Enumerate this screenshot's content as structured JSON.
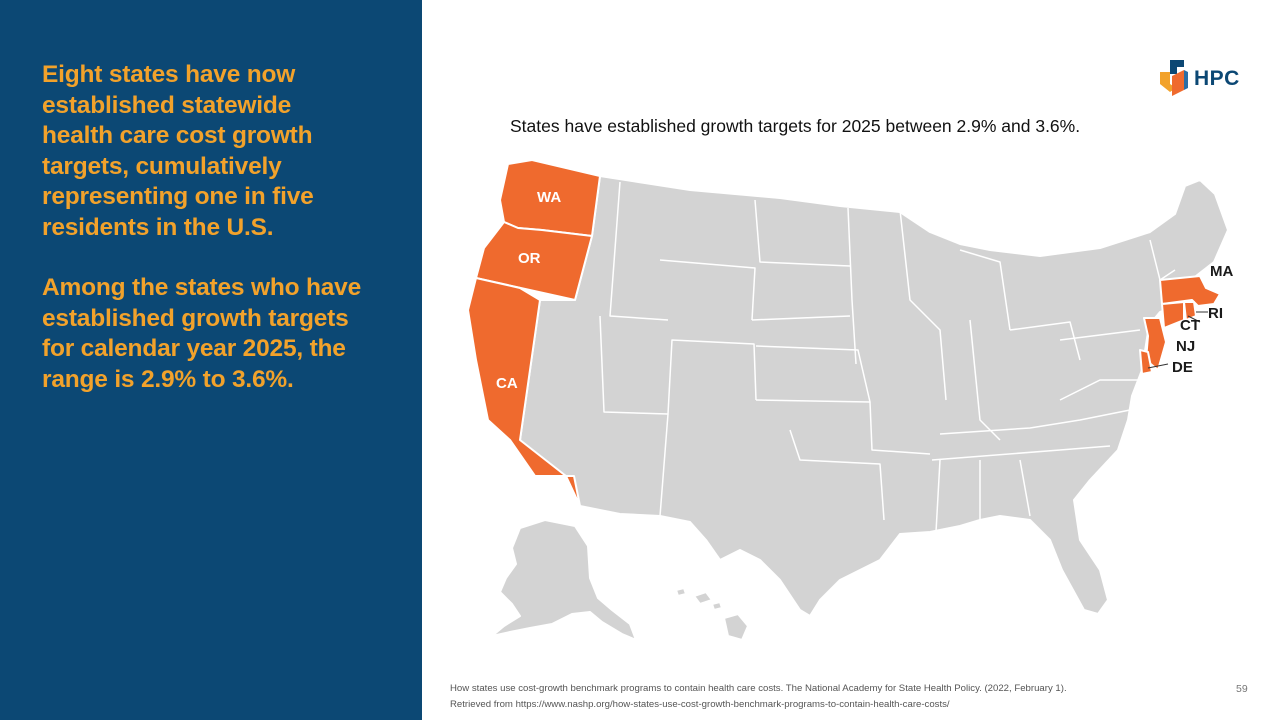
{
  "left_panel": {
    "paragraph_1": "Eight states have now established statewide health care cost growth targets, cumulatively representing one in five residents in the U.S.",
    "paragraph_2": "Among the states who have established growth targets for calendar year 2025, the range is 2.9% to 3.6%."
  },
  "logo": {
    "text": "HPC"
  },
  "map": {
    "title": "States have established growth targets for 2025 between 2.9% and 3.6%.",
    "highlight_color": "#ef6a2e",
    "base_color": "#d3d3d3",
    "labeled_states": [
      "WA",
      "OR",
      "CA",
      "MA",
      "RI",
      "CT",
      "NJ",
      "DE"
    ]
  },
  "citation": {
    "line_1": "How states use cost-growth benchmark programs to contain health care costs. The National Academy for State Health Policy. (2022, February 1).",
    "line_2": "Retrieved from https://www.nashp.org/how-states-use-cost-growth-benchmark-programs-to-contain-health-care-costs/"
  },
  "page_number": "59"
}
